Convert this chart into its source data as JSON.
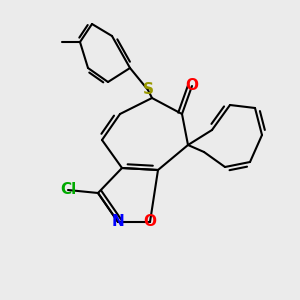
{
  "bg_color": "#ebebeb",
  "line_color": "#000000",
  "bond_width": 1.5,
  "atom_colors": {
    "O_carbonyl": "#ff0000",
    "O_isoxazole": "#ff0000",
    "N": "#0000ff",
    "S": "#999900",
    "Cl": "#00aa00"
  }
}
